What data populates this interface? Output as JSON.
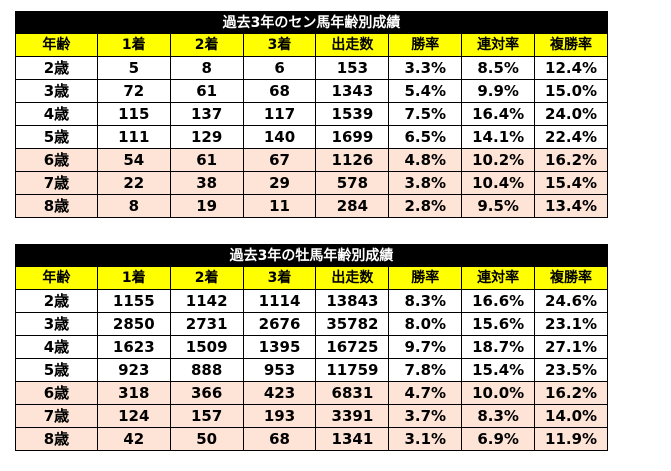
{
  "colors": {
    "title_bg": "#000000",
    "header_bg": "#ffff00",
    "older_row_bg": "#fde4d6"
  },
  "tables": [
    {
      "title": "過去3年のセン馬年齢別成績",
      "headers": [
        "年齢",
        "1着",
        "2着",
        "3着",
        "出走数",
        "勝率",
        "連対率",
        "複勝率"
      ],
      "rows": [
        [
          "2歳",
          "5",
          "8",
          "6",
          "153",
          "3.3%",
          "8.5%",
          "12.4%"
        ],
        [
          "3歳",
          "72",
          "61",
          "68",
          "1343",
          "5.4%",
          "9.9%",
          "15.0%"
        ],
        [
          "4歳",
          "115",
          "137",
          "117",
          "1539",
          "7.5%",
          "16.4%",
          "24.0%"
        ],
        [
          "5歳",
          "111",
          "129",
          "140",
          "1699",
          "6.5%",
          "14.1%",
          "22.4%"
        ],
        [
          "6歳",
          "54",
          "61",
          "67",
          "1126",
          "4.8%",
          "10.2%",
          "16.2%"
        ],
        [
          "7歳",
          "22",
          "38",
          "29",
          "578",
          "3.8%",
          "10.4%",
          "15.4%"
        ],
        [
          "8歳",
          "8",
          "19",
          "11",
          "284",
          "2.8%",
          "9.5%",
          "13.4%"
        ]
      ]
    },
    {
      "title": "過去3年の牡馬年齢別成績",
      "headers": [
        "年齢",
        "1着",
        "2着",
        "3着",
        "出走数",
        "勝率",
        "連対率",
        "複勝率"
      ],
      "rows": [
        [
          "2歳",
          "1155",
          "1142",
          "1114",
          "13843",
          "8.3%",
          "16.6%",
          "24.6%"
        ],
        [
          "3歳",
          "2850",
          "2731",
          "2676",
          "35782",
          "8.0%",
          "15.6%",
          "23.1%"
        ],
        [
          "4歳",
          "1623",
          "1509",
          "1395",
          "16725",
          "9.7%",
          "18.7%",
          "27.1%"
        ],
        [
          "5歳",
          "923",
          "888",
          "953",
          "11759",
          "7.8%",
          "15.4%",
          "23.5%"
        ],
        [
          "6歳",
          "318",
          "366",
          "423",
          "6831",
          "4.7%",
          "10.0%",
          "16.2%"
        ],
        [
          "7歳",
          "124",
          "157",
          "193",
          "3391",
          "3.7%",
          "8.3%",
          "14.0%"
        ],
        [
          "8歳",
          "42",
          "50",
          "68",
          "1341",
          "3.1%",
          "6.9%",
          "11.9%"
        ]
      ]
    }
  ]
}
